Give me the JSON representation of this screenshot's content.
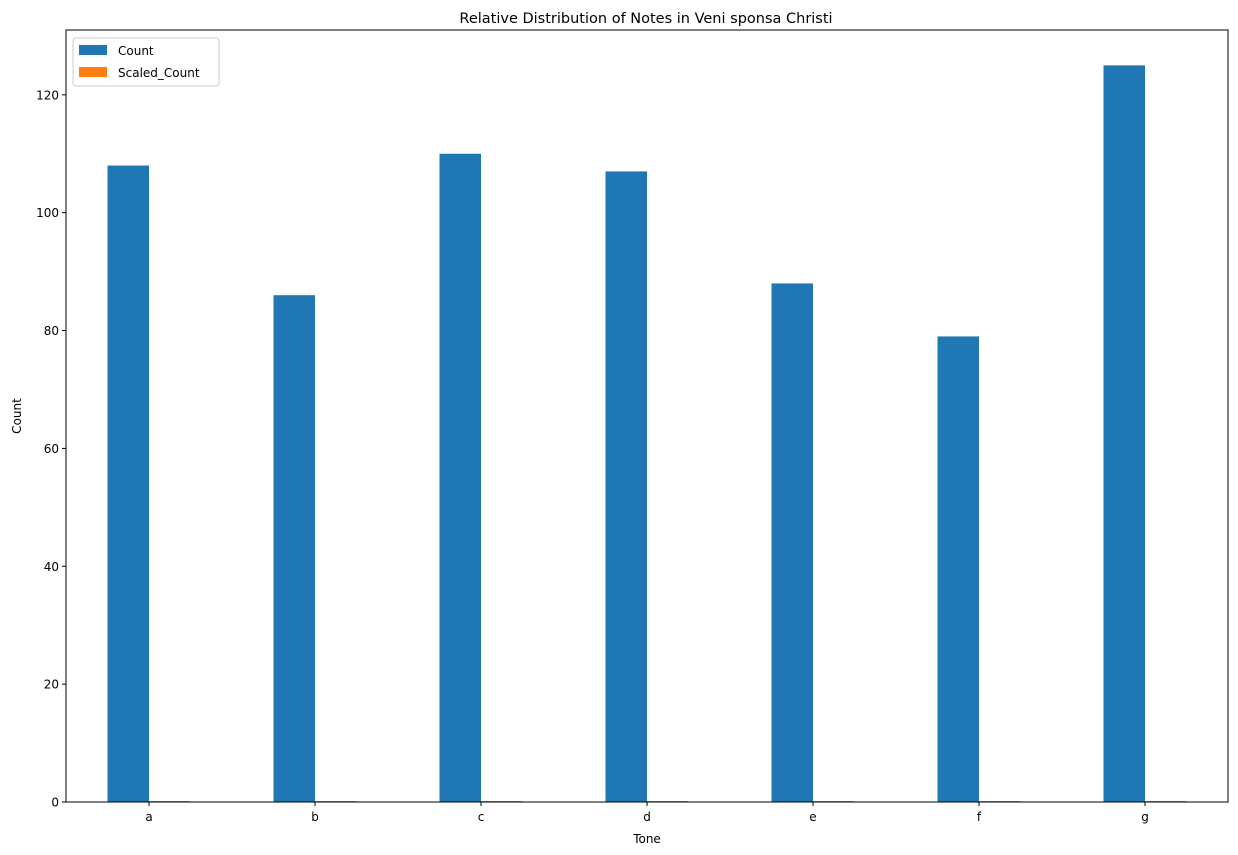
{
  "chart_data": {
    "type": "bar",
    "title": "Relative Distribution of Notes in Veni sponsa Christi",
    "xlabel": "Tone",
    "ylabel": "Count",
    "categories": [
      "a",
      "b",
      "c",
      "d",
      "e",
      "f",
      "g"
    ],
    "series": [
      {
        "name": "Count",
        "color": "#1f77b4",
        "values": [
          108,
          86,
          110,
          107,
          88,
          79,
          125
        ]
      },
      {
        "name": "Scaled_Count",
        "color": "#ff7f0e",
        "values": [
          0.15,
          0.12,
          0.15,
          0.15,
          0.12,
          0.11,
          0.18
        ]
      }
    ],
    "ylim": [
      0,
      131
    ],
    "yticks": [
      0,
      20,
      40,
      60,
      80,
      100,
      120
    ],
    "grid": false,
    "legend_position": "top-left"
  }
}
